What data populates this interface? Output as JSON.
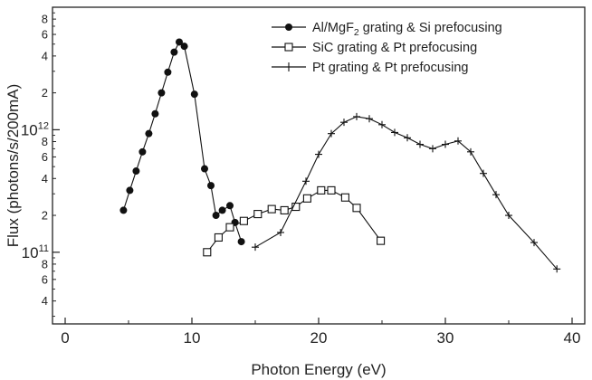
{
  "chart_data": {
    "type": "line",
    "xlabel": "Photon Energy (eV)",
    "ylabel": "Flux (photons/s/200mA)",
    "x_scale": "linear",
    "y_scale": "log",
    "xlim": [
      -1,
      41
    ],
    "ylim": [
      26000000000.0,
      10000000000000.0
    ],
    "x_ticks": [
      0,
      10,
      20,
      30,
      40
    ],
    "x_tick_labels": [
      "0",
      "10",
      "20",
      "30",
      "40"
    ],
    "y_major_ticks": [
      {
        "value": 100000000000.0,
        "base": "10",
        "exp": "11"
      },
      {
        "value": 1000000000000.0,
        "base": "10",
        "exp": "12"
      }
    ],
    "y_minor_ticks": [
      {
        "value": 40000000000.0,
        "label": "4"
      },
      {
        "value": 60000000000.0,
        "label": "6"
      },
      {
        "value": 80000000000.0,
        "label": "8"
      },
      {
        "value": 200000000000.0,
        "label": "2"
      },
      {
        "value": 400000000000.0,
        "label": "4"
      },
      {
        "value": 600000000000.0,
        "label": "6"
      },
      {
        "value": 800000000000.0,
        "label": "8"
      },
      {
        "value": 2000000000000.0,
        "label": "2"
      },
      {
        "value": 4000000000000.0,
        "label": "4"
      },
      {
        "value": 6000000000000.0,
        "label": "6"
      },
      {
        "value": 8000000000000.0,
        "label": "8"
      }
    ],
    "grid": false,
    "legend_position": "top-right",
    "series": [
      {
        "name_main": "Al/MgF",
        "name_sub": "2",
        "name_rest": " grating & Si prefocusing",
        "marker": "filled-circle",
        "color": "#111111",
        "points": [
          [
            4.6,
            220000000000.0
          ],
          [
            5.1,
            320000000000.0
          ],
          [
            5.6,
            460000000000.0
          ],
          [
            6.1,
            660000000000.0
          ],
          [
            6.6,
            930000000000.0
          ],
          [
            7.1,
            1350000000000.0
          ],
          [
            7.6,
            2000000000000.0
          ],
          [
            8.1,
            2950000000000.0
          ],
          [
            8.6,
            4300000000000.0
          ],
          [
            9.0,
            5200000000000.0
          ],
          [
            9.4,
            4800000000000.0
          ],
          [
            10.2,
            1950000000000.0
          ],
          [
            11.0,
            480000000000.0
          ],
          [
            11.5,
            350000000000.0
          ],
          [
            11.9,
            200000000000.0
          ],
          [
            12.4,
            220000000000.0
          ],
          [
            13.0,
            240000000000.0
          ],
          [
            13.4,
            175000000000.0
          ],
          [
            13.9,
            122000000000.0
          ]
        ]
      },
      {
        "name": "SiC grating & Pt prefocusing",
        "marker": "open-square",
        "color": "#111111",
        "points": [
          [
            11.2,
            100000000000.0
          ],
          [
            12.1,
            132000000000.0
          ],
          [
            13.0,
            160000000000.0
          ],
          [
            14.1,
            180000000000.0
          ],
          [
            15.2,
            205000000000.0
          ],
          [
            16.3,
            225000000000.0
          ],
          [
            17.3,
            220000000000.0
          ],
          [
            18.2,
            235000000000.0
          ],
          [
            19.1,
            275000000000.0
          ],
          [
            20.2,
            320000000000.0
          ],
          [
            21.0,
            320000000000.0
          ],
          [
            22.1,
            280000000000.0
          ],
          [
            23.0,
            230000000000.0
          ],
          [
            24.9,
            124000000000.0
          ]
        ]
      },
      {
        "name": "Pt grating & Pt prefocusing",
        "marker": "plus",
        "color": "#111111",
        "points": [
          [
            15.0,
            110000000000.0
          ],
          [
            17.0,
            145000000000.0
          ],
          [
            19.0,
            380000000000.0
          ],
          [
            20.0,
            630000000000.0
          ],
          [
            21.0,
            930000000000.0
          ],
          [
            22.0,
            1150000000000.0
          ],
          [
            23.0,
            1280000000000.0
          ],
          [
            24.0,
            1230000000000.0
          ],
          [
            25.0,
            1100000000000.0
          ],
          [
            26.0,
            950000000000.0
          ],
          [
            27.0,
            860000000000.0
          ],
          [
            28.0,
            760000000000.0
          ],
          [
            29.0,
            700000000000.0
          ],
          [
            30.0,
            760000000000.0
          ],
          [
            31.0,
            810000000000.0
          ],
          [
            32.0,
            660000000000.0
          ],
          [
            33.0,
            440000000000.0
          ],
          [
            34.0,
            295000000000.0
          ],
          [
            35.0,
            200000000000.0
          ],
          [
            37.0,
            120000000000.0
          ],
          [
            38.8,
            73000000000.0
          ]
        ]
      }
    ]
  }
}
